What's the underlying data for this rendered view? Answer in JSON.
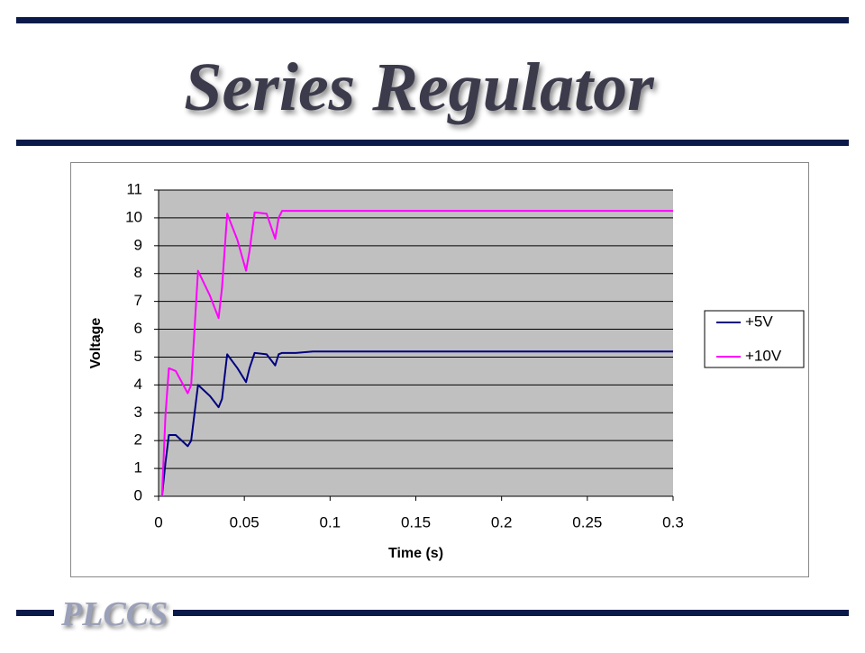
{
  "slide": {
    "title": "Series Regulator",
    "footer": "PLCCS"
  },
  "chart_data": {
    "type": "line",
    "x_label": "Time (s)",
    "y_label": "Voltage",
    "x": [
      0.002,
      0.004,
      0.006,
      0.01,
      0.017,
      0.019,
      0.023,
      0.03,
      0.035,
      0.037,
      0.04,
      0.046,
      0.051,
      0.053,
      0.056,
      0.063,
      0.068,
      0.07,
      0.072,
      0.08,
      0.09,
      0.12,
      0.2,
      0.3
    ],
    "series": [
      {
        "name": "+5V",
        "color": "#000080",
        "values": [
          0,
          1.2,
          2.2,
          2.2,
          1.8,
          2.0,
          4.0,
          3.6,
          3.2,
          3.5,
          5.1,
          4.6,
          4.1,
          4.6,
          5.15,
          5.1,
          4.7,
          5.1,
          5.15,
          5.15,
          5.2,
          5.2,
          5.2,
          5.2
        ]
      },
      {
        "name": "+10V",
        "color": "#ff00ff",
        "values": [
          0,
          2.9,
          4.6,
          4.5,
          3.7,
          4.0,
          8.1,
          7.2,
          6.4,
          7.5,
          10.15,
          9.2,
          8.1,
          8.8,
          10.2,
          10.15,
          9.25,
          10.0,
          10.25,
          10.25,
          10.25,
          10.25,
          10.25,
          10.25
        ]
      }
    ],
    "xlim": [
      0,
      0.3
    ],
    "xticks": [
      0,
      0.05,
      0.1,
      0.15,
      0.2,
      0.25,
      0.3
    ],
    "ylim": [
      0,
      11
    ],
    "yticks": [
      0,
      1,
      2,
      3,
      4,
      5,
      6,
      7,
      8,
      9,
      10,
      11
    ],
    "grid": true,
    "plot_background": "#c0c0c0",
    "legend": "right"
  }
}
